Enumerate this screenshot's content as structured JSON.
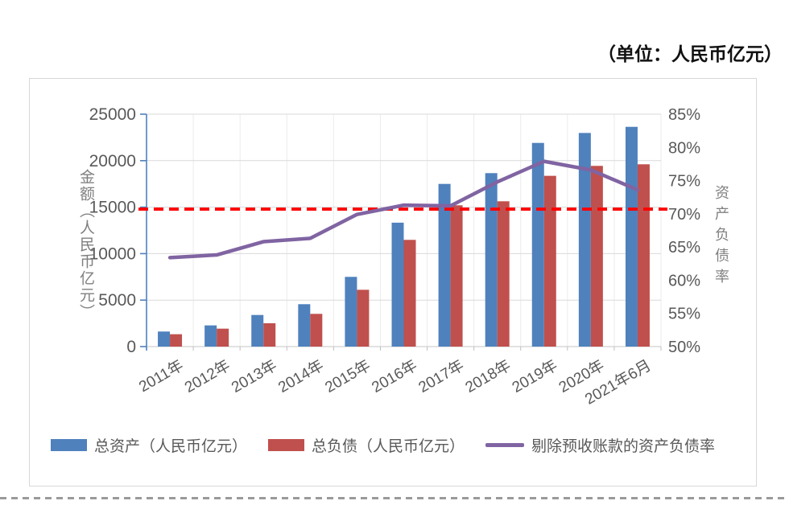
{
  "page": {
    "unit_label": "（单位：人民币亿元）"
  },
  "chart_data": {
    "type": "combo-bar-line",
    "categories": [
      "2011年",
      "2012年",
      "2013年",
      "2014年",
      "2015年",
      "2016年",
      "2017年",
      "2018年",
      "2019年",
      "2020年",
      "2021年6月"
    ],
    "series": [
      {
        "name": "总资产（人民币亿元）",
        "type": "bar",
        "axis": "left",
        "color": "#4F81BD",
        "values": [
          1620,
          2280,
          3400,
          4560,
          7500,
          13330,
          17500,
          18660,
          21910,
          22980,
          23640
        ]
      },
      {
        "name": "总负债（人民币亿元）",
        "type": "bar",
        "axis": "left",
        "color": "#C0504D",
        "values": [
          1330,
          1930,
          2510,
          3520,
          6110,
          11480,
          15200,
          15630,
          18370,
          19440,
          19610
        ]
      },
      {
        "name": "剔除预收账款的资产负债率",
        "type": "line",
        "axis": "right",
        "color": "#8064A2",
        "values": [
          63.4,
          63.8,
          65.8,
          66.3,
          69.9,
          71.3,
          71.2,
          74.8,
          77.9,
          76.6,
          73.6
        ]
      }
    ],
    "left_axis": {
      "title": "金额（人民币亿元）",
      "min": 0,
      "max": 25000,
      "step": 5000,
      "tick_labels": [
        "25000",
        "20000",
        "15000",
        "10000",
        "5000",
        "0"
      ],
      "line_color": "#4F81BD"
    },
    "right_axis": {
      "title": "资产负债率",
      "min": 50,
      "max": 85,
      "step": 5,
      "tick_labels": [
        "85%",
        "80%",
        "75%",
        "70%",
        "65%",
        "60%",
        "55%",
        "50%"
      ]
    },
    "reference_line": {
      "value_pct": 70.7,
      "color": "#FF0000",
      "style": "dashed"
    },
    "grid": {
      "horizontal": true,
      "vertical": true
    },
    "legend_position": "bottom"
  }
}
